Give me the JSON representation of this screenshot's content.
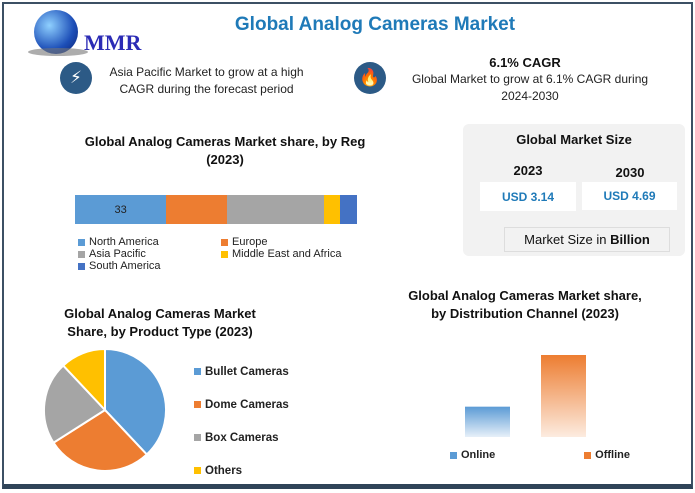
{
  "header": {
    "title": "Global Analog Cameras Market",
    "logo_text": "MMR"
  },
  "highlights": [
    {
      "icon": "lightning-icon",
      "text": "Asia Pacific Market to grow at a high CAGR during the forecast period"
    },
    {
      "icon": "flame-icon",
      "heading": "6.1% CAGR",
      "text": "Global Market to grow at 6.1% CAGR during 2024-2030"
    }
  ],
  "market_size": {
    "title": "Global Market Size",
    "years": [
      {
        "year": "2023",
        "value": "USD 3.14"
      },
      {
        "year": "2030",
        "value": "USD 4.69"
      }
    ],
    "unit_prefix": "Market Size in ",
    "unit_bold": "Billion"
  },
  "colors": {
    "blue": "#5b9bd5",
    "orange": "#ed7d31",
    "gray": "#a5a5a5",
    "yellow": "#ffc000",
    "darkblue": "#4472c4",
    "title": "#1f7ab8"
  },
  "chart_data": [
    {
      "type": "bar",
      "orientation": "horizontal-stacked",
      "title": "Global Analog Cameras Market share, by Reg (2023)",
      "series": [
        {
          "name": "North America",
          "values": [
            33
          ],
          "label": "33"
        },
        {
          "name": "Europe",
          "values": [
            22
          ]
        },
        {
          "name": "Asia Pacific",
          "values": [
            35
          ]
        },
        {
          "name": "Middle East and Africa",
          "values": [
            6
          ]
        },
        {
          "name": "South America",
          "values": [
            6
          ]
        }
      ],
      "legend": "bottom"
    },
    {
      "type": "pie",
      "title": "Global Analog Cameras Market Share, by Product Type (2023)",
      "categories": [
        "Bullet Cameras",
        "Dome Cameras",
        "Box Cameras",
        "Others"
      ],
      "values": [
        38,
        28,
        22,
        12
      ],
      "legend": "right"
    },
    {
      "type": "bar",
      "title": "Global Analog Cameras Market share, by Distribution Channel (2023)",
      "categories": [
        "Online",
        "Offline"
      ],
      "values": [
        27,
        73
      ],
      "legend": "bottom"
    }
  ]
}
